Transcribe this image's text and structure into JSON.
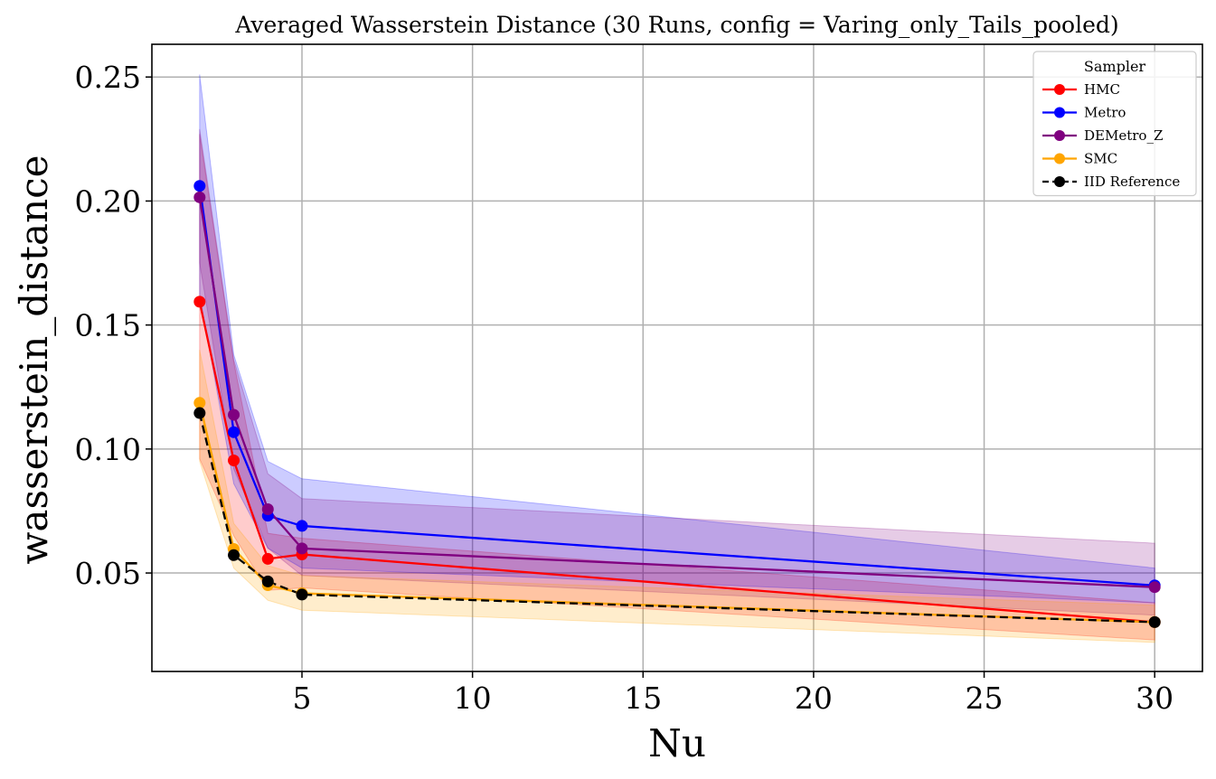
{
  "chart_data": {
    "type": "line",
    "title": "Averaged Wasserstein Distance (30 Runs, config = Varing_only_Tails_pooled)",
    "xlabel": "Nu",
    "ylabel": "wasserstein_distance",
    "x": [
      2,
      3,
      4,
      5,
      30
    ],
    "xlim": [
      0.6,
      31.4
    ],
    "ylim": [
      0.0103,
      0.2632
    ],
    "xticks": [
      5,
      10,
      15,
      20,
      25,
      30
    ],
    "xtick_labels": [
      "5",
      "10",
      "15",
      "20",
      "25",
      "30"
    ],
    "yticks": [
      0.05,
      0.1,
      0.15,
      0.2,
      0.25
    ],
    "ytick_labels": [
      "0.05",
      "0.10",
      "0.15",
      "0.20",
      "0.25"
    ],
    "grid": true,
    "legend": {
      "title": "Sampler",
      "placement": "top-right"
    },
    "series": [
      {
        "name": "HMC",
        "color": "#ff0000",
        "line_style": "solid",
        "values": [
          0.1594,
          0.0954,
          0.0557,
          0.0575,
          0.0302
        ],
        "band_lower": [
          0.096,
          0.065,
          0.043,
          0.044,
          0.023
        ],
        "band_upper": [
          0.227,
          0.135,
          0.066,
          0.064,
          0.038
        ]
      },
      {
        "name": "Metro",
        "color": "#0000ff",
        "line_style": "solid",
        "values": [
          0.2061,
          0.1068,
          0.0731,
          0.069,
          0.045
        ],
        "band_lower": [
          0.162,
          0.086,
          0.06,
          0.052,
          0.038
        ],
        "band_upper": [
          0.251,
          0.138,
          0.095,
          0.088,
          0.052
        ]
      },
      {
        "name": "DEMetro_Z",
        "color": "#800080",
        "line_style": "solid",
        "values": [
          0.2015,
          0.1138,
          0.0757,
          0.0599,
          0.0443
        ],
        "band_lower": [
          0.175,
          0.092,
          0.06,
          0.049,
          0.033
        ],
        "band_upper": [
          0.229,
          0.136,
          0.09,
          0.08,
          0.062
        ]
      },
      {
        "name": "SMC",
        "color": "#ffa500",
        "line_style": "solid",
        "values": [
          0.1186,
          0.0597,
          0.0451,
          0.0418,
          0.0302
        ],
        "band_lower": [
          0.095,
          0.052,
          0.039,
          0.035,
          0.022
        ],
        "band_upper": [
          0.14,
          0.07,
          0.053,
          0.049,
          0.037
        ]
      },
      {
        "name": "IID Reference",
        "color": "#000000",
        "line_style": "dashed",
        "values": [
          0.1145,
          0.0572,
          0.0466,
          0.0413,
          0.0302
        ],
        "band_lower": null,
        "band_upper": null
      }
    ]
  }
}
